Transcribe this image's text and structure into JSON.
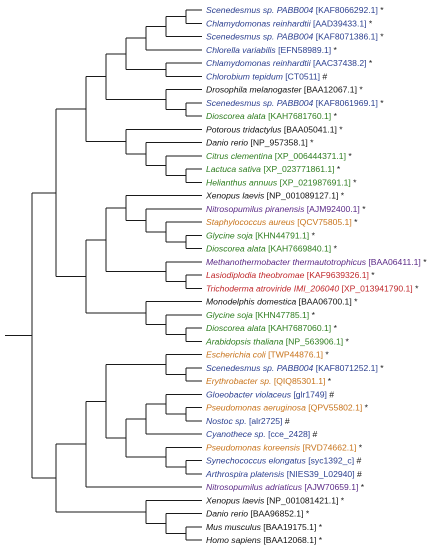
{
  "colors": {
    "branch": "#1a1a1a",
    "blue": "#2b3f8f",
    "green": "#2e7d1f",
    "black": "#111111",
    "purple": "#5b2a86",
    "red": "#c0282b",
    "orange": "#c8741c"
  },
  "leaves": [
    {
      "species": "Scenedesmus sp. PABB004",
      "acc": "[KAF8066292.1]",
      "mark": "*",
      "color": "blue"
    },
    {
      "species": "Chlamydomonas reinhardtii",
      "acc": "[AAD39433.1]",
      "mark": "*",
      "color": "blue"
    },
    {
      "species": "Scenedesmus sp. PABB004",
      "acc": "[KAF8071386.1]",
      "mark": "*",
      "color": "blue"
    },
    {
      "species": "Chlorella variabilis",
      "acc": "[EFN58989.1]",
      "mark": "*",
      "color": "blue"
    },
    {
      "species": "Chlamydomonas reinhardtii",
      "acc": "[AAC37438.2]",
      "mark": "*",
      "color": "blue"
    },
    {
      "species": "Chlorobium tepidum",
      "acc": "[CT0511]",
      "mark": "#",
      "color": "blue"
    },
    {
      "species": "Drosophila melanogaster",
      "acc": "[BAA12067.1]",
      "mark": "*",
      "color": "black"
    },
    {
      "species": "Scenedesmus sp. PABB004",
      "acc": "[KAF8061969.1]",
      "mark": "*",
      "color": "blue"
    },
    {
      "species": "Dioscorea alata",
      "acc": "[KAH7681760.1]",
      "mark": "*",
      "color": "green"
    },
    {
      "species": "Potorous tridactylus",
      "acc": "[BAA05041.1]",
      "mark": "*",
      "color": "black"
    },
    {
      "species": "Danio rerio",
      "acc": "[NP_957358.1]",
      "mark": "*",
      "color": "black"
    },
    {
      "species": "Citrus clementina",
      "acc": "[XP_006444371.1]",
      "mark": "*",
      "color": "green"
    },
    {
      "species": "Lactuca sativa",
      "acc": "[XP_023771861.1]",
      "mark": "*",
      "color": "green"
    },
    {
      "species": "Helianthus annuus",
      "acc": "[XP_021987691.1]",
      "mark": "*",
      "color": "green"
    },
    {
      "species": "Xenopus laevis",
      "acc": "[NP_001089127.1]",
      "mark": "*",
      "color": "black"
    },
    {
      "species": "Nitrosopumilus piranensis",
      "acc": "[AJM92400.1]",
      "mark": "*",
      "color": "purple"
    },
    {
      "species": "Staphylococcus aureus",
      "acc": "[QCV75805.1]",
      "mark": "*",
      "color": "orange"
    },
    {
      "species": "Glycine soja",
      "acc": "[KHN44791.1]",
      "mark": "*",
      "color": "green"
    },
    {
      "species": "Dioscorea alata",
      "acc": "[KAH7669840.1]",
      "mark": "*",
      "color": "green"
    },
    {
      "species": "Methanothermobacter thermautotrophicus",
      "acc": "[BAA06411.1]",
      "mark": "*",
      "color": "purple"
    },
    {
      "species": "Lasiodiplodia theobromae",
      "acc": "[KAF9639326.1]",
      "mark": "*",
      "color": "red"
    },
    {
      "species": "Trichoderma atroviride IMI_206040",
      "acc": "[XP_013941790.1]",
      "mark": "*",
      "color": "red"
    },
    {
      "species": "Monodelphis domestica",
      "acc": "[BAA06700.1]",
      "mark": "*",
      "color": "black"
    },
    {
      "species": "Glycine soja",
      "acc": "[KHN47785.1]",
      "mark": "*",
      "color": "green"
    },
    {
      "species": "Dioscorea alata",
      "acc": "[KAH7687060.1]",
      "mark": "*",
      "color": "green"
    },
    {
      "species": "Arabidopsis thaliana",
      "acc": "[NP_563906.1]",
      "mark": "*",
      "color": "green"
    },
    {
      "species": "Escherichia coli",
      "acc": "[TWP44876.1]",
      "mark": "*",
      "color": "orange"
    },
    {
      "species": "Scenedesmus sp. PABB004",
      "acc": "[KAF8071252.1]",
      "mark": "*",
      "color": "blue"
    },
    {
      "species": "Erythrobacter sp.",
      "acc": "[QIQ85301.1]",
      "mark": "*",
      "color": "orange"
    },
    {
      "species": "Gloeobacter violaceus",
      "acc": "[glr1749]",
      "mark": "#",
      "color": "blue"
    },
    {
      "species": "Pseudomonas aeruginosa",
      "acc": "[QPV55802.1]",
      "mark": "*",
      "color": "orange"
    },
    {
      "species": "Nostoc sp.",
      "acc": "[alr2725]",
      "mark": "#",
      "color": "blue"
    },
    {
      "species": "Cyanothece sp.",
      "acc": "[cce_2428]",
      "mark": "#",
      "color": "blue"
    },
    {
      "species": "Pseudomonas koreensis",
      "acc": "[RVD74662.1]",
      "mark": "*",
      "color": "orange"
    },
    {
      "species": "Synechococcus elongatus",
      "acc": "[syc1392_c]",
      "mark": "#",
      "color": "blue"
    },
    {
      "species": "Arthrospira platensis",
      "acc": "[NIES39_L02940]",
      "mark": "#",
      "color": "blue"
    },
    {
      "species": "Nitrosopumilus adriaticus",
      "acc": "[AJW70659.1]",
      "mark": "*",
      "color": "purple"
    },
    {
      "species": "Xenopus laevis",
      "acc": "[NP_001081421.1]",
      "mark": "*",
      "color": "black"
    },
    {
      "species": "Danio rerio",
      "acc": "[BAA96852.1]",
      "mark": "*",
      "color": "black"
    },
    {
      "species": "Mus musculus",
      "acc": "[BAA19175.1]",
      "mark": "*",
      "color": "black"
    },
    {
      "species": "Homo sapiens",
      "acc": "[BAA12068.1]",
      "mark": "*",
      "color": "black"
    }
  ]
}
